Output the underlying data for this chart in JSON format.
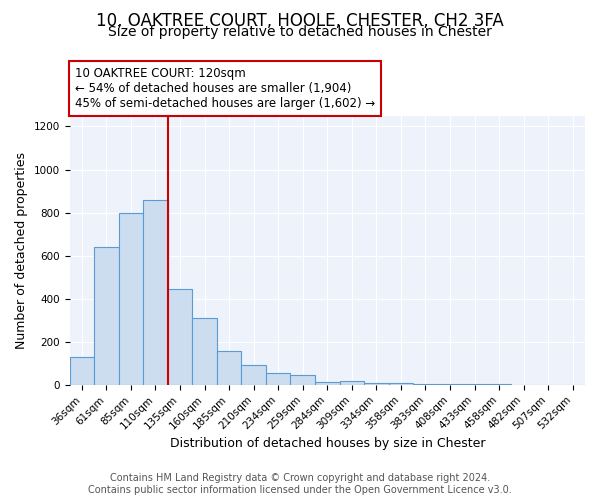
{
  "title": "10, OAKTREE COURT, HOOLE, CHESTER, CH2 3FA",
  "subtitle": "Size of property relative to detached houses in Chester",
  "xlabel": "Distribution of detached houses by size in Chester",
  "ylabel": "Number of detached properties",
  "bar_labels": [
    "36sqm",
    "61sqm",
    "85sqm",
    "110sqm",
    "135sqm",
    "160sqm",
    "185sqm",
    "210sqm",
    "234sqm",
    "259sqm",
    "284sqm",
    "309sqm",
    "334sqm",
    "358sqm",
    "383sqm",
    "408sqm",
    "433sqm",
    "458sqm",
    "482sqm",
    "507sqm",
    "532sqm"
  ],
  "bar_values": [
    130,
    640,
    800,
    860,
    445,
    310,
    155,
    90,
    55,
    45,
    15,
    20,
    10,
    8,
    3,
    3,
    2,
    2,
    1,
    1,
    1
  ],
  "bar_color": "#ccddf0",
  "bar_edge_color": "#5b9bd5",
  "vline_x": 3.5,
  "vline_color": "#cc0000",
  "annotation_title": "10 OAKTREE COURT: 120sqm",
  "annotation_line1": "← 54% of detached houses are smaller (1,904)",
  "annotation_line2": "45% of semi-detached houses are larger (1,602) →",
  "annotation_box_color": "#ffffff",
  "annotation_box_edge": "#cc0000",
  "ylim": [
    0,
    1250
  ],
  "footer1": "Contains HM Land Registry data © Crown copyright and database right 2024.",
  "footer2": "Contains public sector information licensed under the Open Government Licence v3.0.",
  "bg_color": "#ffffff",
  "plot_bg_color": "#eef2fa",
  "grid_color": "#ffffff",
  "title_fontsize": 12,
  "subtitle_fontsize": 10,
  "axis_label_fontsize": 9,
  "tick_fontsize": 7.5,
  "footer_fontsize": 7,
  "annotation_fontsize": 8.5
}
